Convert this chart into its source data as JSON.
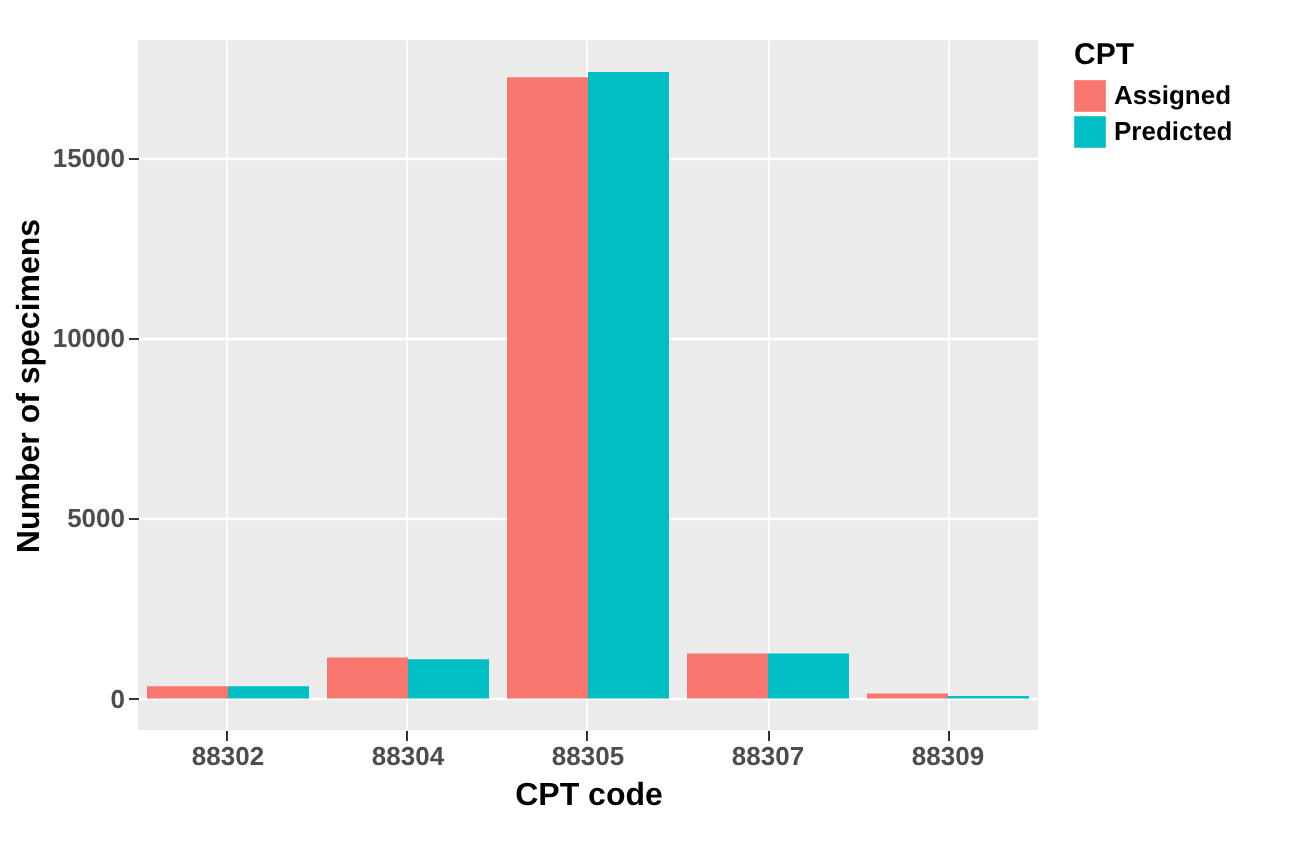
{
  "chart_data": {
    "type": "bar",
    "xlabel": "CPT code",
    "ylabel": "Number of specimens",
    "legend_title": "CPT",
    "legend": "right",
    "categories": [
      "88302",
      "88304",
      "88305",
      "88307",
      "88309"
    ],
    "series": [
      {
        "name": "Assigned",
        "color": "#f8766d",
        "values": [
          340,
          1140,
          17230,
          1250,
          140
        ]
      },
      {
        "name": "Predicted",
        "color": "#00bfc4",
        "values": [
          340,
          1090,
          17370,
          1250,
          70
        ]
      }
    ],
    "ylim": [
      -870,
      18260
    ],
    "yticks": [
      0,
      5000,
      10000,
      15000
    ],
    "grid": true
  }
}
